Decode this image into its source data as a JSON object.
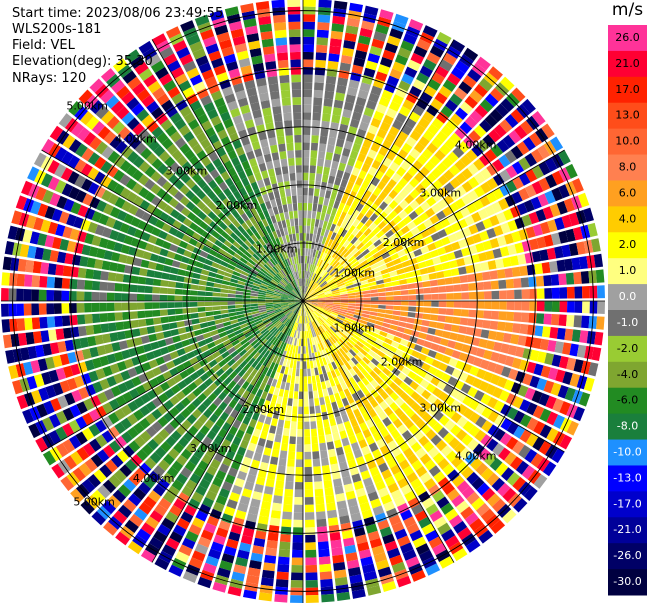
{
  "header": {
    "start_time": "Start time: 2023/08/06 23:49:55",
    "instrument": "WLS200s-181",
    "field": "Field: VEL",
    "elevation": "Elevation(deg): 35.30",
    "nrays": "NRays: 120"
  },
  "colorbar": {
    "unit": "m/s",
    "levels": [
      {
        "label": "26.0",
        "color": "#ff3399"
      },
      {
        "label": "21.0",
        "color": "#ff0033"
      },
      {
        "label": "17.0",
        "color": "#ff2200"
      },
      {
        "label": "13.0",
        "color": "#ff4d1a"
      },
      {
        "label": "10.0",
        "color": "#ff6633"
      },
      {
        "label": "8.0",
        "color": "#ff8050"
      },
      {
        "label": "6.0",
        "color": "#ffa020"
      },
      {
        "label": "4.0",
        "color": "#ffcc00"
      },
      {
        "label": "2.0",
        "color": "#ffff00"
      },
      {
        "label": "1.0",
        "color": "#ffff80"
      },
      {
        "label": "0.0",
        "color": "#a0a0a0"
      },
      {
        "label": "-1.0",
        "color": "#707070"
      },
      {
        "label": "-2.0",
        "color": "#99cc33"
      },
      {
        "label": "-4.0",
        "color": "#7fa630"
      },
      {
        "label": "-6.0",
        "color": "#228b22"
      },
      {
        "label": "-8.0",
        "color": "#1a7f3c"
      },
      {
        "label": "-10.0",
        "color": "#1e90ff"
      },
      {
        "label": "-13.0",
        "color": "#0000ff"
      },
      {
        "label": "-17.0",
        "color": "#0000cc"
      },
      {
        "label": "-21.0",
        "color": "#000099"
      },
      {
        "label": "-26.0",
        "color": "#000066"
      },
      {
        "label": "-30.0",
        "color": "#000040"
      }
    ]
  },
  "chart_data": {
    "type": "heatmap",
    "projection": "polar",
    "rays": 120,
    "range_rings_km": [
      1.0,
      2.0,
      3.0,
      4.0,
      5.0
    ],
    "max_range_km": 5.2,
    "ring_labels": [
      {
        "text": "1.00km",
        "ring": 1.0,
        "angle_deg": 333
      },
      {
        "text": "2.00km",
        "ring": 2.0,
        "angle_deg": 325
      },
      {
        "text": "3.00km",
        "ring": 3.0,
        "angle_deg": 318
      },
      {
        "text": "4.00km",
        "ring": 4.0,
        "angle_deg": 314
      },
      {
        "text": "5.00km",
        "ring": 5.0,
        "angle_deg": 312
      },
      {
        "text": "1.00km",
        "ring": 1.0,
        "angle_deg": 62
      },
      {
        "text": "2.00km",
        "ring": 2.0,
        "angle_deg": 60
      },
      {
        "text": "3.00km",
        "ring": 3.0,
        "angle_deg": 52
      },
      {
        "text": "4.00km",
        "ring": 4.0,
        "angle_deg": 48
      },
      {
        "text": "1.00km",
        "ring": 1.0,
        "angle_deg": 118
      },
      {
        "text": "2.00km",
        "ring": 2.0,
        "angle_deg": 122
      },
      {
        "text": "3.00km",
        "ring": 3.0,
        "angle_deg": 128
      },
      {
        "text": "4.00km",
        "ring": 4.0,
        "angle_deg": 132
      },
      {
        "text": "2.00km",
        "ring": 2.0,
        "angle_deg": 200
      },
      {
        "text": "3.00km",
        "ring": 3.0,
        "angle_deg": 212
      },
      {
        "text": "4.00km",
        "ring": 4.0,
        "angle_deg": 220
      },
      {
        "text": "5.00km",
        "ring": 5.0,
        "angle_deg": 226
      }
    ],
    "sectors": [
      {
        "from_deg": 20,
        "to_deg": 160,
        "value_range": [
          1.0,
          6.0
        ]
      },
      {
        "from_deg": 80,
        "to_deg": 110,
        "value_range": [
          6.0,
          10.0
        ]
      },
      {
        "from_deg": 160,
        "to_deg": 200,
        "value_range": [
          0.0,
          4.0
        ]
      },
      {
        "from_deg": 200,
        "to_deg": 340,
        "value_range": [
          -8.0,
          -2.0
        ]
      },
      {
        "from_deg": 340,
        "to_deg": 20,
        "value_range": [
          -2.0,
          1.0
        ]
      }
    ],
    "noise_beyond_km": 3.8,
    "spoke_angles_deg": [
      0,
      30,
      60,
      90,
      120,
      150,
      180,
      210,
      240,
      270,
      300,
      330
    ]
  }
}
